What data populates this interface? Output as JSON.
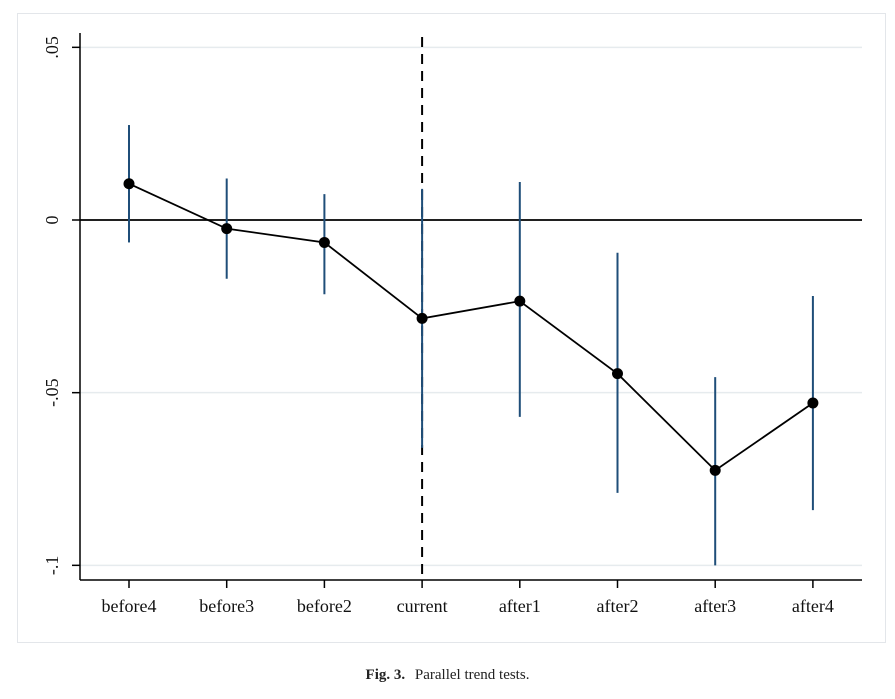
{
  "caption": {
    "label": "Fig. 3.",
    "text": "Parallel trend tests."
  },
  "chart_data": {
    "type": "line",
    "title": "",
    "xlabel": "",
    "ylabel": "",
    "categories": [
      "before4",
      "before3",
      "before2",
      "current",
      "after1",
      "after2",
      "after3",
      "after4"
    ],
    "series": [
      {
        "values": [
          0.0105,
          -0.0025,
          -0.0065,
          -0.0285,
          -0.0235,
          -0.0445,
          -0.0725,
          -0.053
        ],
        "ci_low": [
          -0.0065,
          -0.017,
          -0.0215,
          -0.066,
          -0.057,
          -0.079,
          -0.1,
          -0.084
        ],
        "ci_high": [
          0.0275,
          0.012,
          0.0075,
          0.009,
          0.011,
          -0.0095,
          -0.0455,
          -0.022
        ]
      }
    ],
    "yticks": [
      0.05,
      0,
      -0.05,
      -0.1
    ],
    "ytick_labels": [
      ".05",
      "0",
      "-.05",
      "-.1"
    ],
    "ylim": [
      -0.104,
      0.053
    ],
    "grid": true,
    "reference_lines": {
      "horizontal_y": 0,
      "vertical_category": "current"
    },
    "colors": {
      "line": "#000000",
      "marker": "#000000",
      "ci": "#1f4e79",
      "grid": "#e6ebee",
      "axis": "#000000"
    }
  }
}
